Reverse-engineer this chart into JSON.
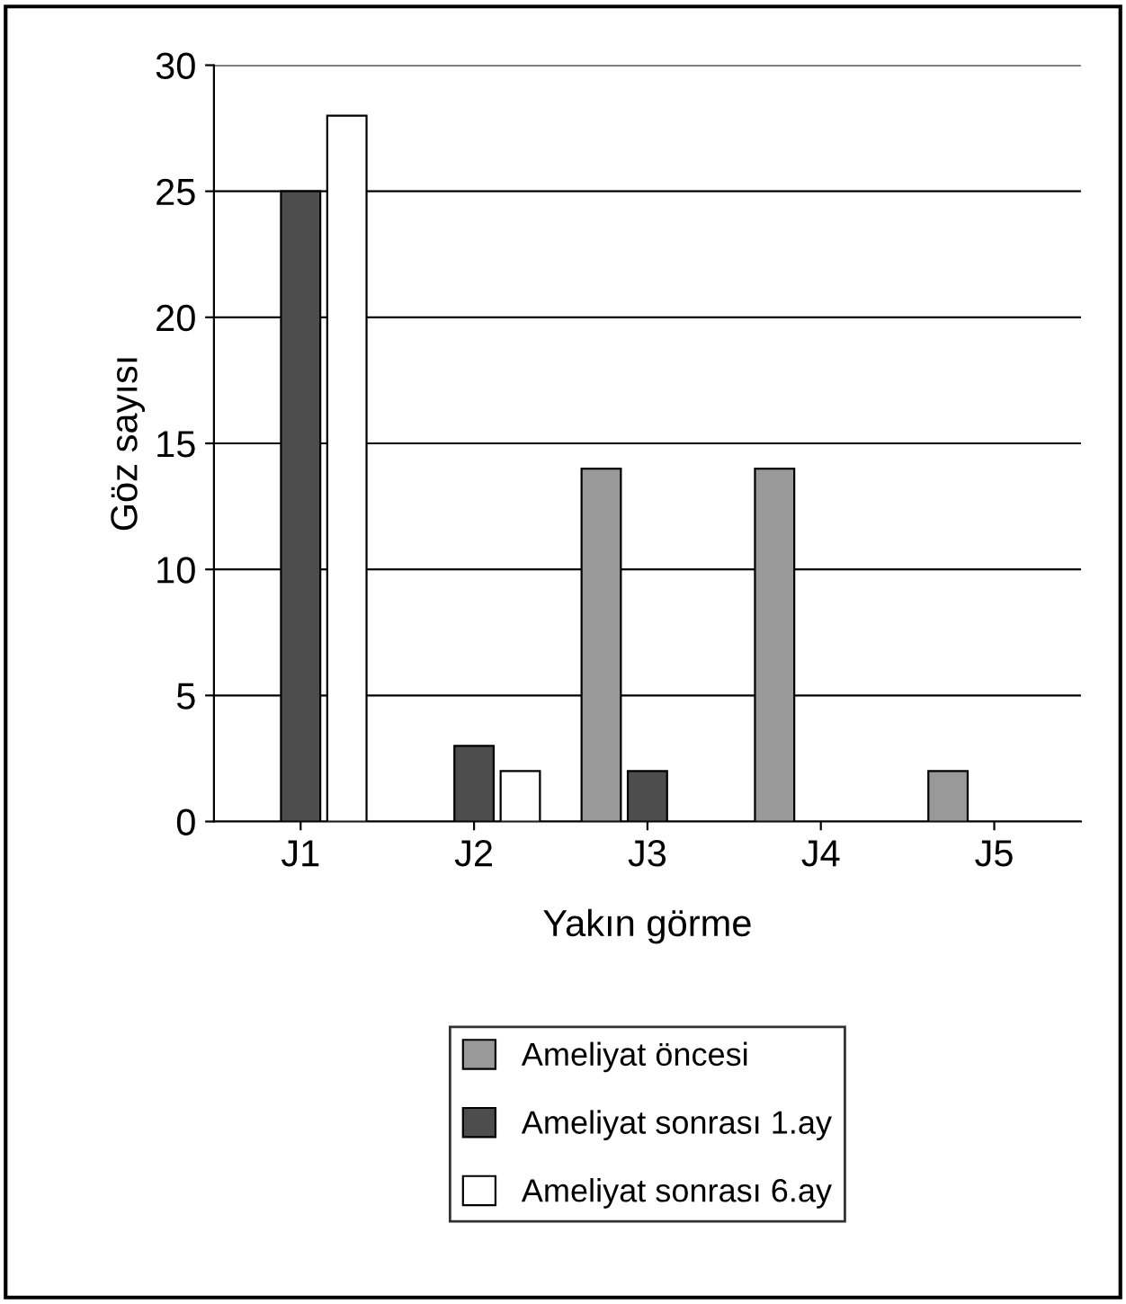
{
  "chart_data": {
    "type": "bar",
    "xlabel": "Yakın görme",
    "ylabel": "Göz sayısı",
    "categories": [
      "J1",
      "J2",
      "J3",
      "J4",
      "J5"
    ],
    "series": [
      {
        "name": "Ameliyat öncesi",
        "color": "#999999",
        "values": [
          null,
          null,
          14,
          14,
          2
        ]
      },
      {
        "name": "Ameliyat sonrası 1.ay",
        "color": "#4d4d4d",
        "values": [
          25,
          3,
          2,
          null,
          null
        ]
      },
      {
        "name": "Ameliyat sonrası 6.ay",
        "color": "#ffffff",
        "values": [
          28,
          2,
          null,
          null,
          null
        ]
      }
    ],
    "ylim": [
      0,
      30
    ],
    "yticks": [
      0,
      5,
      10,
      15,
      20,
      25,
      30
    ],
    "grid": "y",
    "legend": "bottom"
  }
}
